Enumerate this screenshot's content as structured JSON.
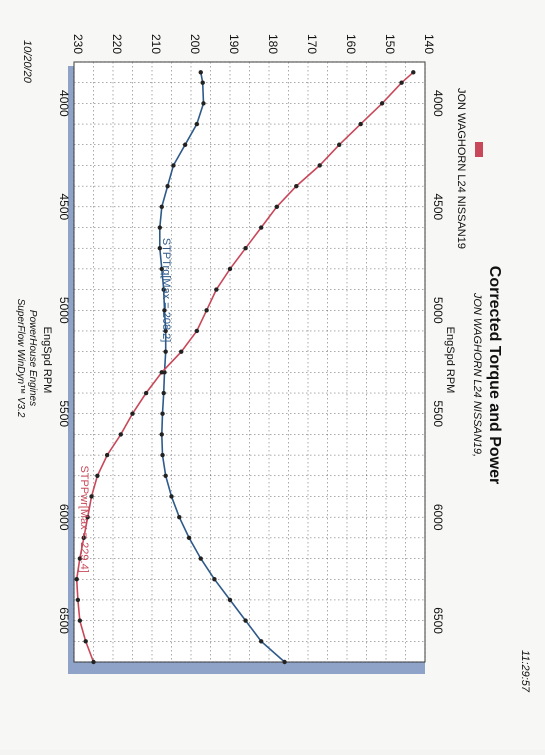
{
  "header": {
    "title": "Corrected Torque and Power",
    "subtitle": "JON WAGHORN L24 NISSAN19,",
    "legend_label": "JON WAGHORN L24 NISSAN19"
  },
  "footer": {
    "date": "10/20/20",
    "time": "11:29:57",
    "line1": "PowerHouse Engines",
    "line2": "SuperFlow WinDyn™ V3.2"
  },
  "colors": {
    "torque": "#2e5a8a",
    "power": "#c8485a",
    "frame_shadow": "#8ea3c7",
    "grid": "#555555"
  },
  "chart_data": {
    "type": "line",
    "orientation": "rotated-90-clockwise",
    "title": "Corrected Torque and Power",
    "xlabel": "EngSpd RPM",
    "xlim": [
      3800,
      6700
    ],
    "xticks": [
      4000,
      4500,
      5000,
      5500,
      6000,
      6500
    ],
    "ylim": [
      140,
      230
    ],
    "yticks": [
      140,
      150,
      160,
      170,
      180,
      190,
      200,
      210,
      220,
      230
    ],
    "grid": true,
    "series": [
      {
        "name": "STPTrq",
        "annotation": "STPTrq[Max = 208.2]",
        "color": "#2e5a8a",
        "x": [
          3850,
          3900,
          4000,
          4100,
          4200,
          4300,
          4400,
          4500,
          4600,
          4700,
          4800,
          4900,
          5000,
          5100,
          5200,
          5300,
          5400,
          5500,
          5600,
          5700,
          5800,
          5900,
          6000,
          6100,
          6200,
          6300,
          6400,
          6500,
          6600,
          6700
        ],
        "values": [
          197.5,
          197.0,
          196.8,
          198.5,
          201.5,
          204.5,
          206.0,
          207.5,
          208.0,
          208.0,
          207.5,
          207.0,
          206.8,
          206.5,
          206.5,
          206.8,
          207.0,
          207.3,
          207.5,
          207.3,
          206.5,
          205.0,
          203.0,
          200.5,
          197.5,
          194.0,
          190.0,
          186.0,
          182.0,
          176.0
        ]
      },
      {
        "name": "STPPwr",
        "annotation": "STPPwr[Max = 229.4]",
        "color": "#c8485a",
        "x": [
          3850,
          3900,
          4000,
          4100,
          4200,
          4300,
          4400,
          4500,
          4600,
          4700,
          4800,
          4900,
          5000,
          5100,
          5200,
          5300,
          5400,
          5500,
          5600,
          5700,
          5800,
          5900,
          6000,
          6100,
          6200,
          6300,
          6400,
          6500,
          6600,
          6700
        ],
        "values": [
          143.0,
          146.0,
          151.0,
          156.5,
          162.0,
          167.0,
          173.0,
          178.0,
          182.0,
          186.0,
          190.0,
          193.5,
          196.0,
          198.5,
          202.5,
          207.5,
          211.5,
          215.0,
          218.0,
          221.5,
          224.0,
          225.5,
          226.5,
          227.5,
          228.5,
          229.3,
          229.0,
          228.5,
          227.0,
          225.0
        ]
      }
    ]
  }
}
